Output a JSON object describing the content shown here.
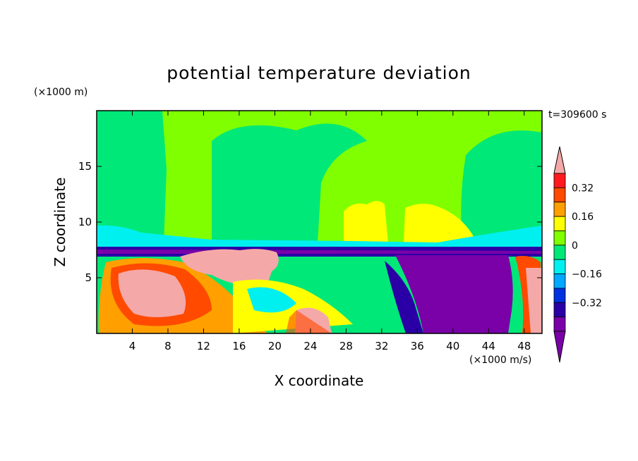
{
  "chart_data": {
    "type": "heatmap",
    "title": "potential temperature deviation",
    "xlabel": "X coordinate",
    "ylabel": "Z coordinate",
    "x_unit": "(×1000 m/s)",
    "y_unit": "(×1000 m)",
    "time_label": "t=309600 s",
    "xlim": [
      0,
      50
    ],
    "ylim": [
      0,
      20
    ],
    "x_ticks": [
      4,
      8,
      12,
      16,
      20,
      24,
      28,
      32,
      36,
      40,
      44,
      48
    ],
    "y_ticks": [
      5,
      10,
      15
    ],
    "x_tick_labels": [
      "4",
      "8",
      "12",
      "16",
      "20",
      "24",
      "28",
      "32",
      "36",
      "40",
      "44",
      "48"
    ],
    "y_tick_labels": [
      "5",
      "10",
      "15"
    ],
    "colorbar": {
      "levels": [
        -0.4,
        -0.32,
        -0.24,
        -0.16,
        -0.08,
        0,
        0.08,
        0.16,
        0.24,
        0.32,
        0.4
      ],
      "labels": [
        "0.32",
        "0.16",
        "0",
        "−0.16",
        "−0.32"
      ],
      "label_values": [
        0.32,
        0.16,
        0,
        -0.16,
        -0.32
      ],
      "colors": [
        "#7a00a8",
        "#2a00a6",
        "#0030e0",
        "#00a8ff",
        "#00f0f0",
        "#00e878",
        "#80ff00",
        "#ffff00",
        "#ffa000",
        "#ff4a00",
        "#ff1a20"
      ],
      "over_color": "#f5a8a8",
      "under_color": "#7a00a8"
    },
    "grid": false
  }
}
